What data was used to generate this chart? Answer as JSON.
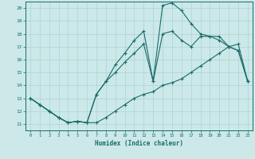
{
  "xlabel": "Humidex (Indice chaleur)",
  "xlim": [
    -0.5,
    23.5
  ],
  "ylim": [
    10.5,
    20.5
  ],
  "yticks": [
    11,
    12,
    13,
    14,
    15,
    16,
    17,
    18,
    19,
    20
  ],
  "xticks": [
    0,
    1,
    2,
    3,
    4,
    5,
    6,
    7,
    8,
    9,
    10,
    11,
    12,
    13,
    14,
    15,
    16,
    17,
    18,
    19,
    20,
    21,
    22,
    23
  ],
  "background_color": "#cce8e8",
  "line_color": "#1a6b6b",
  "grid_color": "#aad4d4",
  "line1_y": [
    13.0,
    12.5,
    12.0,
    11.5,
    11.1,
    11.2,
    11.1,
    13.3,
    14.3,
    15.6,
    16.5,
    17.5,
    18.2,
    14.3,
    20.2,
    20.4,
    19.8,
    18.8,
    18.0,
    17.8,
    17.8,
    17.0,
    16.7,
    14.3
  ],
  "line2_y": [
    13.0,
    12.5,
    12.0,
    11.5,
    11.1,
    11.2,
    11.1,
    11.1,
    11.5,
    12.0,
    12.5,
    13.0,
    13.3,
    13.5,
    14.0,
    14.2,
    14.5,
    15.0,
    15.5,
    16.0,
    16.5,
    17.0,
    17.2,
    14.3
  ],
  "line3_y": [
    13.0,
    12.5,
    12.0,
    11.5,
    11.1,
    11.2,
    11.1,
    13.3,
    14.3,
    15.0,
    15.8,
    16.5,
    17.2,
    14.3,
    18.0,
    18.2,
    17.5,
    17.0,
    17.8,
    17.8,
    17.5,
    17.0,
    16.7,
    14.3
  ]
}
